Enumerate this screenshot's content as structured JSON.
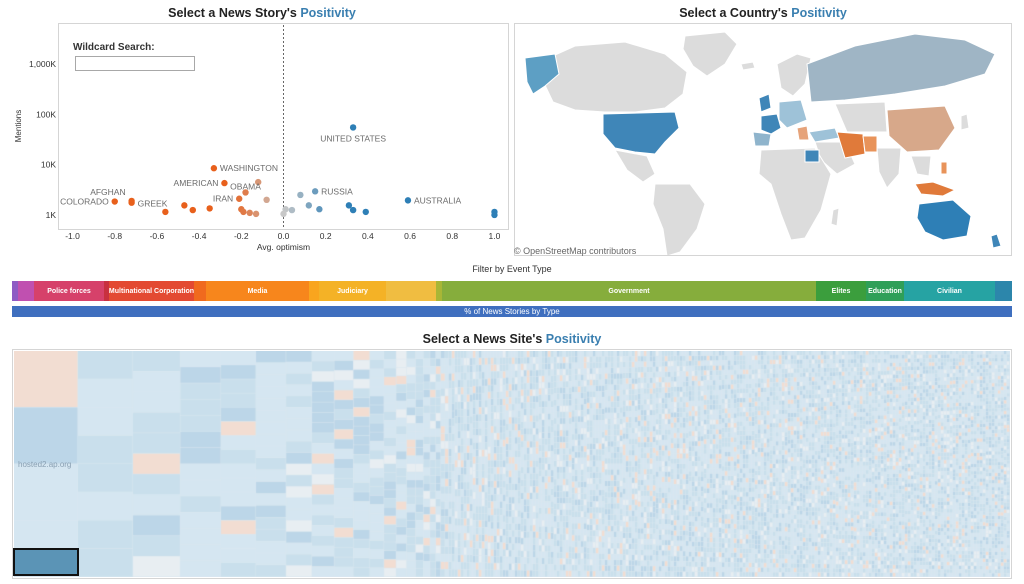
{
  "panels": {
    "story": {
      "title_prefix": "Select a News Story's ",
      "title_accent": "Positivity"
    },
    "country": {
      "title_prefix": "Select a Country's ",
      "title_accent": "Positivity"
    },
    "site": {
      "title_prefix": "Select a News Site's ",
      "title_accent": "Positivity"
    }
  },
  "search": {
    "label": "Wildcard Search:",
    "value": "",
    "placeholder": ""
  },
  "map": {
    "credit": "© OpenStreetMap contributors"
  },
  "filter": {
    "title": "Filter by Event Type",
    "segments": [
      {
        "label": "",
        "share": 0.6,
        "color": "#8e5bc4"
      },
      {
        "label": "",
        "share": 1.6,
        "color": "#c050b0"
      },
      {
        "label": "Police forces",
        "share": 7.0,
        "color": "#d6416a"
      },
      {
        "label": "",
        "share": 0.5,
        "color": "#c8303f"
      },
      {
        "label": "Multinational Corporation",
        "share": 8.5,
        "color": "#e34a32"
      },
      {
        "label": "",
        "share": 1.2,
        "color": "#f06a1e"
      },
      {
        "label": "Media",
        "share": 10.3,
        "color": "#f7861c"
      },
      {
        "label": "",
        "share": 1.0,
        "color": "#f9a51e"
      },
      {
        "label": "Judiciary",
        "share": 6.7,
        "color": "#f4b226"
      },
      {
        "label": "",
        "share": 5.0,
        "color": "#f0bd41"
      },
      {
        "label": "",
        "share": 0.6,
        "color": "#a8b636"
      },
      {
        "label": "Government",
        "share": 37.4,
        "color": "#86ad3c"
      },
      {
        "label": "Elites",
        "share": 5.0,
        "color": "#3b9e3d"
      },
      {
        "label": "Education",
        "share": 3.8,
        "color": "#2f9f58"
      },
      {
        "label": "Civilian",
        "share": 9.1,
        "color": "#26a3a3"
      },
      {
        "label": "",
        "share": 1.7,
        "color": "#2c86ab"
      }
    ],
    "pct_label": "% of News Stories by Type"
  },
  "site_grid": {
    "first_label": "hosted2.ap.org"
  },
  "chart_data": {
    "type": "scatter",
    "xlabel": "Avg. optimism",
    "ylabel": "Mentions",
    "xlim": [
      -1.05,
      1.05
    ],
    "x_ticks": [
      "-1.0",
      "-0.8",
      "-0.6",
      "-0.4",
      "-0.2",
      "0.0",
      "0.2",
      "0.4",
      "0.6",
      "0.8",
      "1.0"
    ],
    "y_ticks": [
      "1K",
      "10K",
      "100K",
      "1,000K"
    ],
    "y_scale": "log",
    "ylim": [
      550,
      6000000
    ],
    "reference_line_x": 0,
    "color_scale": {
      "negative": "#e8601c",
      "neutral": "#c8c8c8",
      "positive": "#2e7fb6"
    },
    "points": [
      {
        "x": 0.33,
        "y": 55000,
        "label": "UNITED STATES"
      },
      {
        "x": -0.33,
        "y": 8500,
        "label": "WASHINGTON"
      },
      {
        "x": -0.28,
        "y": 4300,
        "label": "AMERICAN"
      },
      {
        "x": -0.12,
        "y": 4500,
        "label": ""
      },
      {
        "x": -0.18,
        "y": 2800,
        "label": "OBAMA"
      },
      {
        "x": 0.15,
        "y": 2950,
        "label": "RUSSIA"
      },
      {
        "x": -0.21,
        "y": 2100,
        "label": "IRAN"
      },
      {
        "x": 0.59,
        "y": 1950,
        "label": "AUSTRALIA"
      },
      {
        "x": -0.8,
        "y": 1850,
        "label": "COLORADO"
      },
      {
        "x": -0.72,
        "y": 1900,
        "label": "AFGHAN"
      },
      {
        "x": -0.72,
        "y": 1750,
        "label": "GREEK"
      },
      {
        "x": -0.08,
        "y": 2000,
        "label": ""
      },
      {
        "x": 0.08,
        "y": 2500,
        "label": ""
      },
      {
        "x": -0.47,
        "y": 1550,
        "label": ""
      },
      {
        "x": -0.43,
        "y": 1250,
        "label": ""
      },
      {
        "x": -0.56,
        "y": 1150,
        "label": ""
      },
      {
        "x": -0.35,
        "y": 1350,
        "label": ""
      },
      {
        "x": -0.2,
        "y": 1300,
        "label": ""
      },
      {
        "x": -0.16,
        "y": 1100,
        "label": ""
      },
      {
        "x": -0.13,
        "y": 1050,
        "label": ""
      },
      {
        "x": -0.19,
        "y": 1150,
        "label": ""
      },
      {
        "x": 0.01,
        "y": 1300,
        "label": ""
      },
      {
        "x": 0.04,
        "y": 1250,
        "label": ""
      },
      {
        "x": 0.0,
        "y": 1050,
        "label": ""
      },
      {
        "x": 0.12,
        "y": 1550,
        "label": ""
      },
      {
        "x": 0.17,
        "y": 1300,
        "label": ""
      },
      {
        "x": 0.31,
        "y": 1550,
        "label": ""
      },
      {
        "x": 0.33,
        "y": 1250,
        "label": ""
      },
      {
        "x": 0.39,
        "y": 1150,
        "label": ""
      },
      {
        "x": 1.0,
        "y": 1150,
        "label": ""
      },
      {
        "x": 1.0,
        "y": 1000,
        "label": ""
      }
    ]
  }
}
